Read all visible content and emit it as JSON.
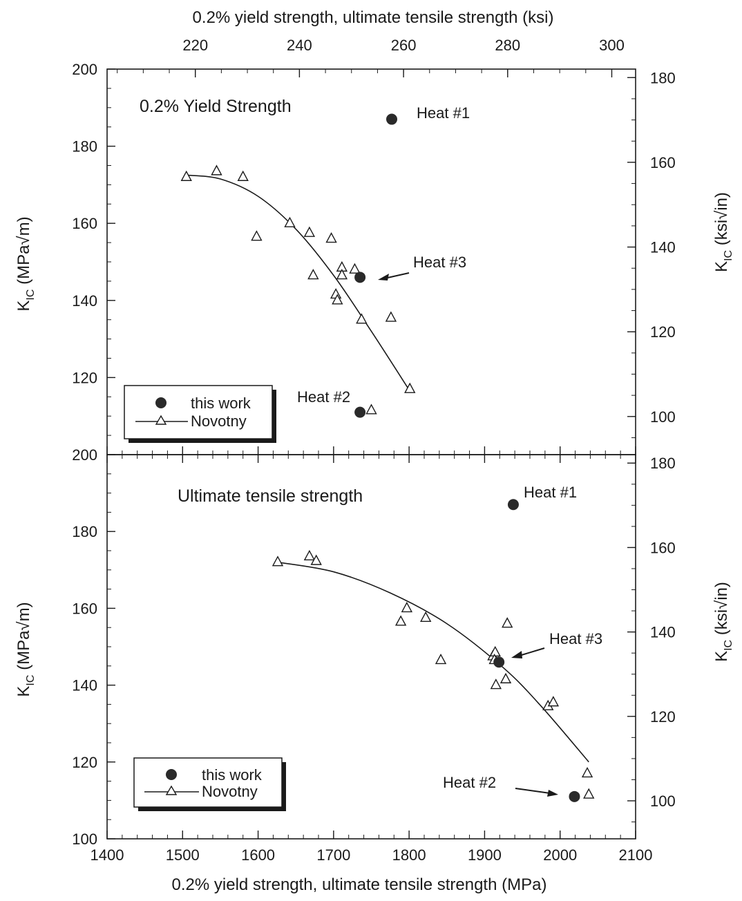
{
  "chart_data": {
    "type": "scatter",
    "top_axis": {
      "label": "0.2% yield strength, ultimate tensile strength (ksi)",
      "range": [
        203.05,
        304.58
      ],
      "ticks": [
        220,
        240,
        260,
        280,
        300
      ],
      "tick_labels": [
        "220",
        "240",
        "260",
        "280",
        "300"
      ]
    },
    "bottom_axis": {
      "label": "0.2% yield strength, ultimate tensile strength (MPa)",
      "range": [
        1400,
        2100
      ],
      "ticks": [
        1400,
        1500,
        1600,
        1700,
        1800,
        1900,
        2000,
        2100
      ],
      "tick_labels": [
        "1400",
        "1500",
        "1600",
        "1700",
        "1800",
        "1900",
        "2000",
        "2100"
      ]
    },
    "panels": [
      {
        "title": "0.2% Yield Strength",
        "ylim": [
          100,
          200
        ],
        "y_right_range": [
          91.0,
          182.0
        ],
        "left_ticks": [
          200,
          180,
          160,
          140,
          120
        ],
        "left_tick_labels": [
          "200",
          "180",
          "160",
          "140",
          "120"
        ],
        "right_ticks": [
          180,
          160,
          140,
          120,
          100
        ],
        "right_tick_labels": [
          "180",
          "160",
          "140",
          "120",
          "100"
        ],
        "ylabel_left": {
          "main": "K",
          "sub": "IC",
          "unit": " (MPa√m)"
        },
        "ylabel_right": {
          "main": "K",
          "sub": "IC",
          "unit": " (ksi√in)"
        },
        "series": [
          {
            "name": "this work",
            "marker": "filled-circle",
            "points": [
              [
                1777,
                187
              ],
              [
                1735,
                146
              ],
              [
                1735,
                111
              ]
            ]
          },
          {
            "name": "Novotny",
            "marker": "open-triangle",
            "points": [
              [
                1505,
                172
              ],
              [
                1545,
                173.5
              ],
              [
                1580,
                172
              ],
              [
                1598,
                156.5
              ],
              [
                1642,
                160
              ],
              [
                1668,
                157.5
              ],
              [
                1673,
                146.5
              ],
              [
                1697,
                156
              ],
              [
                1703,
                141.5
              ],
              [
                1705,
                140
              ],
              [
                1711,
                148.5
              ],
              [
                1711,
                146.5
              ],
              [
                1728,
                148
              ],
              [
                1737,
                135
              ],
              [
                1776,
                135.5
              ],
              [
                1750,
                111.5
              ],
              [
                1801,
                117
              ]
            ],
            "fit_curve": [
              [
                1505,
                172.5
              ],
              [
                1550,
                171.5
              ],
              [
                1600,
                167
              ],
              [
                1650,
                158.5
              ],
              [
                1700,
                146.5
              ],
              [
                1750,
                132
              ],
              [
                1801,
                116.5
              ]
            ]
          }
        ],
        "annotations": [
          {
            "text": "Heat #1"
          },
          {
            "text": "Heat #3"
          },
          {
            "text": "Heat #2"
          }
        ],
        "legend": {
          "placement": "bottom-left",
          "entries": [
            "this work",
            "Novotny"
          ]
        }
      },
      {
        "title": "Ultimate tensile strength",
        "ylim": [
          100,
          200
        ],
        "y_right_range": [
          91.0,
          182.0
        ],
        "left_ticks": [
          200,
          180,
          160,
          140,
          120,
          100
        ],
        "left_tick_labels": [
          "200",
          "180",
          "160",
          "140",
          "120",
          "100"
        ],
        "right_ticks": [
          180,
          160,
          140,
          120,
          100
        ],
        "right_tick_labels": [
          "180",
          "160",
          "140",
          "120",
          "100"
        ],
        "ylabel_left": {
          "main": "K",
          "sub": "IC",
          "unit": " (MPa√m)"
        },
        "ylabel_right": {
          "main": "K",
          "sub": "IC",
          "unit": " (ksi√in)"
        },
        "series": [
          {
            "name": "this work",
            "marker": "filled-circle",
            "points": [
              [
                1938,
                187
              ],
              [
                1919,
                146
              ],
              [
                2019,
                111
              ]
            ]
          },
          {
            "name": "Novotny",
            "marker": "open-triangle",
            "points": [
              [
                1626,
                172
              ],
              [
                1668,
                173.5
              ],
              [
                1677,
                172.3
              ],
              [
                1789,
                156.5
              ],
              [
                1797,
                160
              ],
              [
                1822,
                157.5
              ],
              [
                1842,
                146.5
              ],
              [
                1911,
                147.5
              ],
              [
                1914,
                148.5
              ],
              [
                1913,
                146.5
              ],
              [
                1915,
                140
              ],
              [
                1928,
                141.5
              ],
              [
                1930,
                156
              ],
              [
                1984,
                134.5
              ],
              [
                1991,
                135.5
              ],
              [
                2036,
                117
              ],
              [
                2038,
                111.5
              ]
            ],
            "fit_curve": [
              [
                1626,
                172
              ],
              [
                1700,
                169.5
              ],
              [
                1775,
                164
              ],
              [
                1850,
                156
              ],
              [
                1925,
                144.5
              ],
              [
                1975,
                134.5
              ],
              [
                2038,
                120
              ]
            ]
          }
        ],
        "annotations": [
          {
            "text": "Heat #1"
          },
          {
            "text": "Heat #3"
          },
          {
            "text": "Heat #2"
          }
        ],
        "legend": {
          "placement": "bottom-left",
          "entries": [
            "this work",
            "Novotny"
          ]
        }
      }
    ]
  }
}
